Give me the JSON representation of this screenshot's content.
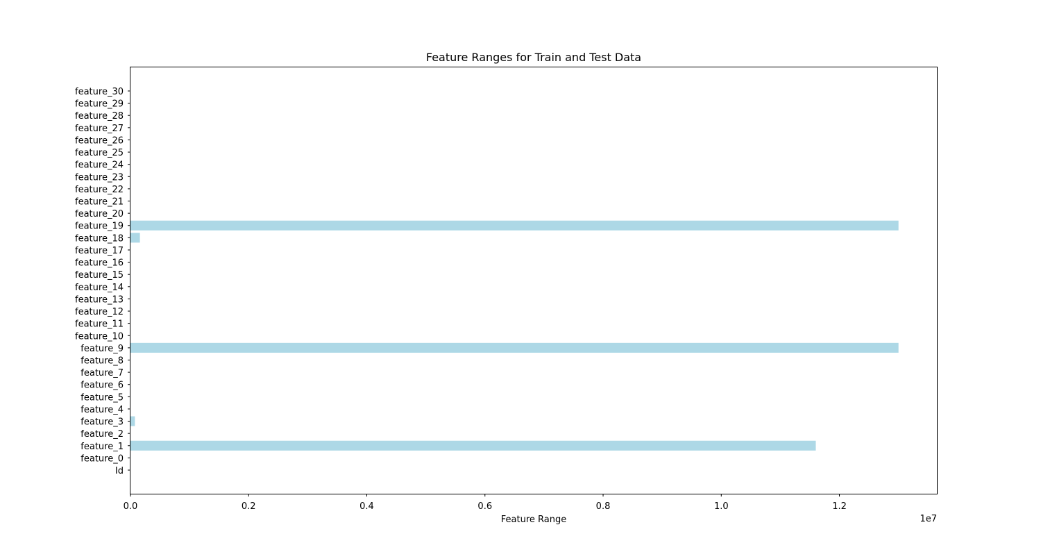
{
  "chart_data": {
    "type": "bar",
    "orientation": "horizontal",
    "title": "Feature Ranges for Train and Test Data",
    "xlabel": "Feature Range",
    "ylabel": "",
    "x_offset_label": "1e7",
    "x_scale": 10000000,
    "xlim": [
      0,
      13650000
    ],
    "x_ticks": [
      0,
      2000000,
      4000000,
      6000000,
      8000000,
      10000000,
      12000000
    ],
    "x_tick_labels": [
      "0.0",
      "0.2",
      "0.4",
      "0.6",
      "0.8",
      "1.0",
      "1.2"
    ],
    "grid": false,
    "bar_color": "#add8e6",
    "categories": [
      "Id",
      "feature_0",
      "feature_1",
      "feature_2",
      "feature_3",
      "feature_4",
      "feature_5",
      "feature_6",
      "feature_7",
      "feature_8",
      "feature_9",
      "feature_10",
      "feature_11",
      "feature_12",
      "feature_13",
      "feature_14",
      "feature_15",
      "feature_16",
      "feature_17",
      "feature_18",
      "feature_19",
      "feature_20",
      "feature_21",
      "feature_22",
      "feature_23",
      "feature_24",
      "feature_25",
      "feature_26",
      "feature_27",
      "feature_28",
      "feature_29",
      "feature_30"
    ],
    "values": [
      0,
      0,
      11600000,
      0,
      75000,
      0,
      0,
      0,
      0,
      0,
      13000000,
      0,
      0,
      0,
      0,
      0,
      0,
      0,
      0,
      160000,
      13000000,
      0,
      0,
      0,
      0,
      0,
      0,
      0,
      0,
      0,
      0,
      0
    ]
  }
}
